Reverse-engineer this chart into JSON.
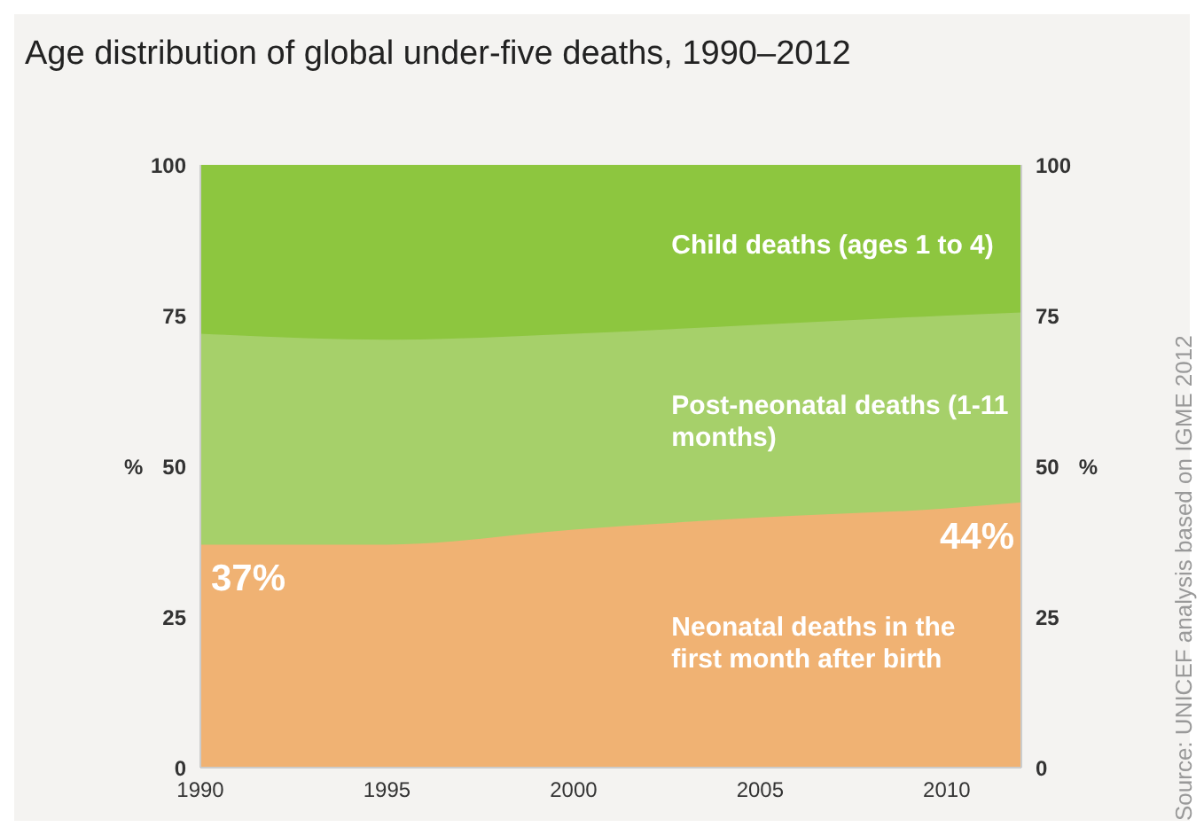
{
  "chart_data": {
    "type": "area",
    "title": "Age distribution of global under-five deaths, 1990–2012",
    "ylabel": "%",
    "y2label": "%",
    "stacked": true,
    "x": [
      1990,
      1995,
      2000,
      2005,
      2010,
      2012
    ],
    "series": [
      {
        "name": "Neonatal deaths in the first month after birth",
        "color": "#f0b273",
        "values": [
          37,
          37,
          39.5,
          41.5,
          43,
          44
        ],
        "value_labels": [
          "37%",
          null,
          null,
          null,
          null,
          "44%"
        ]
      },
      {
        "name": "Post-neonatal deaths (1-11 months)",
        "color": "#a6d06a",
        "values": [
          35,
          34,
          32.5,
          32,
          32,
          31.5
        ]
      },
      {
        "name": "Child deaths (ages 1 to 4)",
        "color": "#8dc63f",
        "values": [
          28,
          29,
          28,
          26.5,
          25,
          24.5
        ]
      }
    ],
    "xlim": [
      1990,
      2012
    ],
    "xticks": [
      1990,
      1995,
      2000,
      2005,
      2010
    ],
    "ylim": [
      0,
      100
    ],
    "yticks": [
      0,
      25,
      50,
      75,
      100
    ],
    "y2lim": [
      0,
      100
    ],
    "y2ticks": [
      0,
      25,
      50,
      75,
      100
    ],
    "grid": false,
    "legend": false,
    "annotations": [
      "Source: UNICEF analysis based on IGME 2012"
    ]
  }
}
